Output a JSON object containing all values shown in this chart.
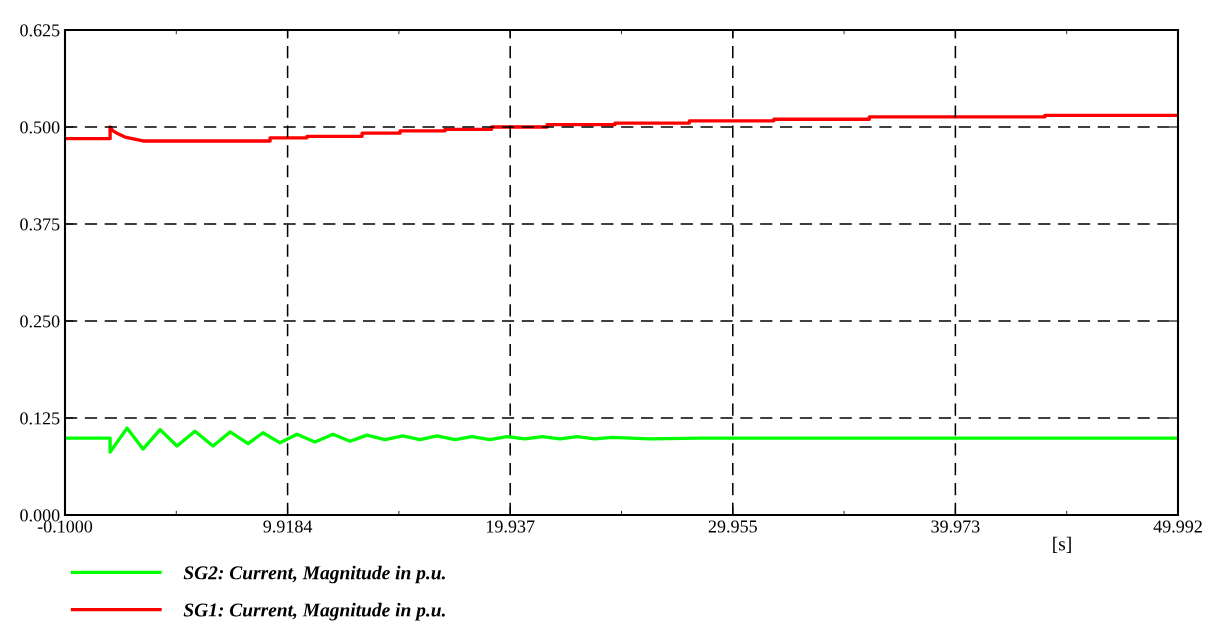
{
  "chart_data": {
    "type": "line",
    "xlabel": "[s]",
    "xlim": [
      -0.1,
      49.992
    ],
    "ylim": [
      0,
      0.625
    ],
    "xticks": [
      {
        "value": -0.1,
        "label": "-0.1000"
      },
      9.9184,
      19.937,
      29.955,
      39.973,
      49.992
    ],
    "yticks": [
      {
        "value": 0,
        "label": "0.000"
      },
      0.125,
      {
        "value": 0.25,
        "label": "0.250"
      },
      0.375,
      {
        "value": 0.5,
        "label": "0.500"
      },
      0.625
    ],
    "grid": true,
    "legend": "bottom",
    "marker": "none",
    "line_style": "solid",
    "series": [
      {
        "name": "SG2: Current, Magnitude in p.u.",
        "color": "#00ff00",
        "x": [
          -0.1,
          1.93,
          1.93,
          2.69,
          3.41,
          4.18,
          4.94,
          5.75,
          6.56,
          7.33,
          8.14,
          8.81,
          9.58,
          10.34,
          11.15,
          11.96,
          12.73,
          13.49,
          14.3,
          15.11,
          15.88,
          16.64,
          17.45,
          18.22,
          19.03,
          19.79,
          20.6,
          21.37,
          22.18,
          22.94,
          23.75,
          24.52,
          26.2,
          28.5,
          34.3,
          49.99
        ],
        "values": [
          0.099,
          0.099,
          0.081,
          0.112,
          0.085,
          0.11,
          0.089,
          0.108,
          0.089,
          0.107,
          0.092,
          0.106,
          0.093,
          0.104,
          0.094,
          0.104,
          0.095,
          0.103,
          0.097,
          0.102,
          0.097,
          0.102,
          0.097,
          0.101,
          0.097,
          0.101,
          0.098,
          0.101,
          0.098,
          0.101,
          0.098,
          0.1,
          0.098,
          0.099,
          0.099,
          0.099
        ]
      },
      {
        "name": "SG1: Current, Magnitude in p.u.",
        "color": "#ff0000",
        "x": [
          -0.1,
          1.93,
          1.93,
          2.06,
          2.24,
          2.6,
          3.41,
          9.13,
          9.13,
          10.79,
          10.79,
          13.27,
          13.27,
          14.98,
          14.98,
          17.0,
          17.0,
          19.1,
          19.1,
          21.6,
          21.6,
          24.65,
          24.65,
          28.0,
          28.0,
          31.8,
          31.8,
          36.1,
          36.1,
          44.0,
          44.0,
          49.99
        ],
        "values": [
          0.485,
          0.485,
          0.5,
          0.495,
          0.492,
          0.487,
          0.482,
          0.482,
          0.486,
          0.486,
          0.488,
          0.488,
          0.492,
          0.492,
          0.495,
          0.495,
          0.497,
          0.497,
          0.5,
          0.5,
          0.503,
          0.503,
          0.505,
          0.505,
          0.508,
          0.508,
          0.51,
          0.51,
          0.513,
          0.513,
          0.515,
          0.515
        ]
      }
    ]
  }
}
